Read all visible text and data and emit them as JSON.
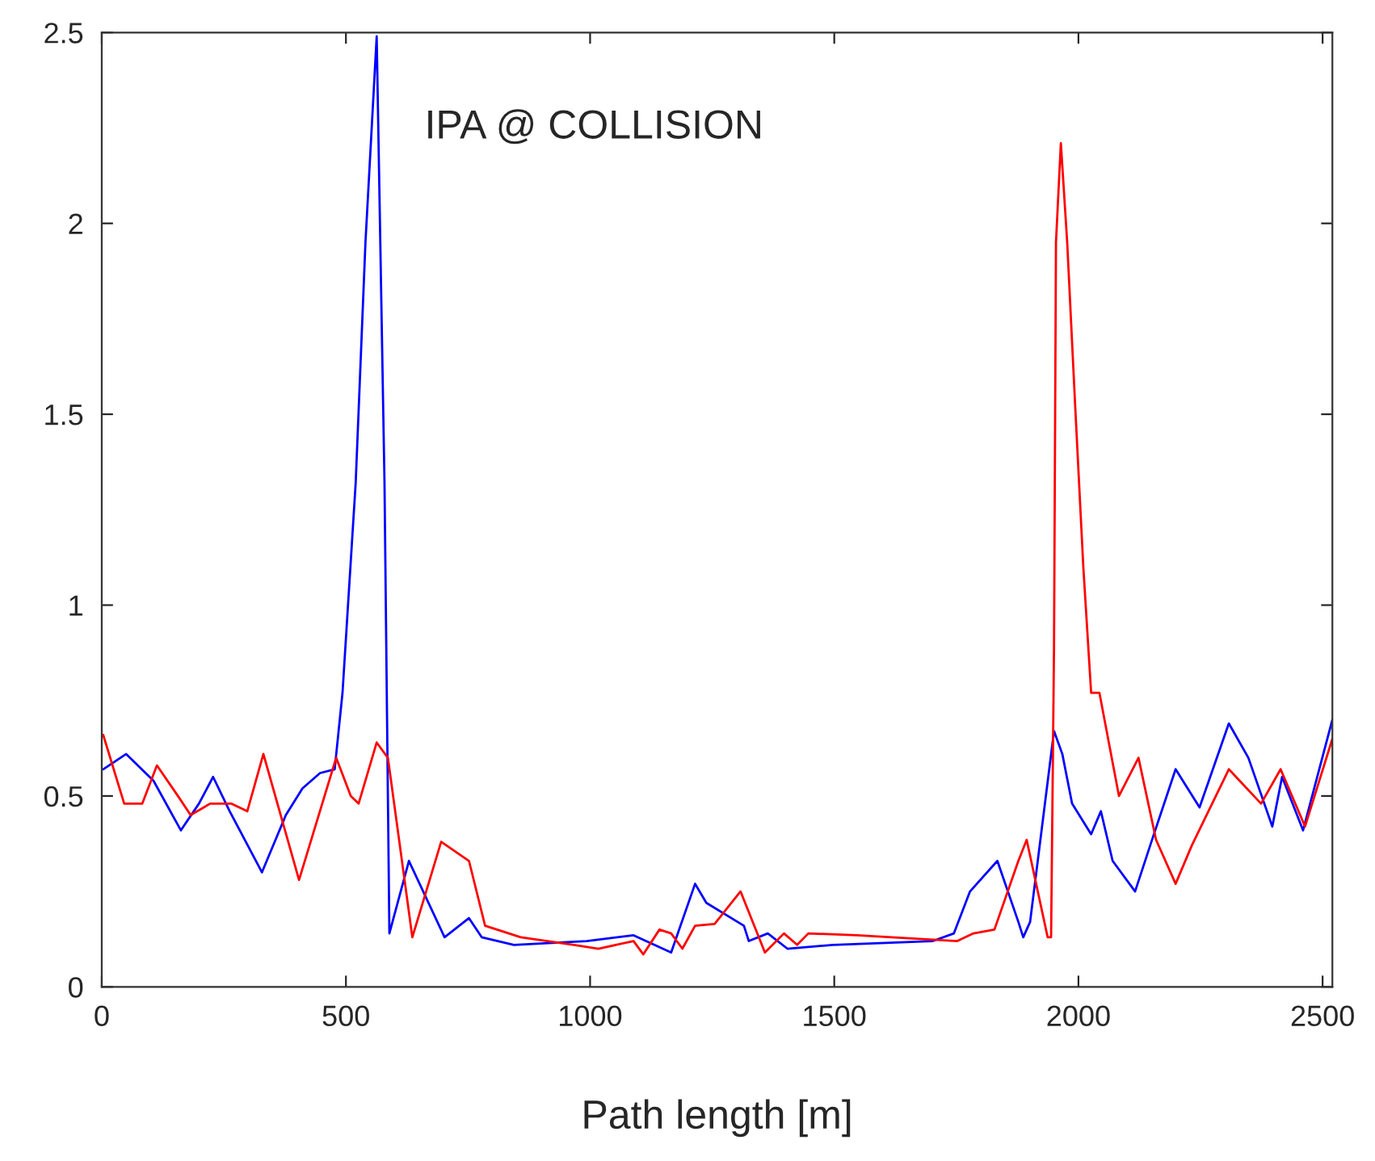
{
  "chart_data": {
    "type": "line",
    "xlabel": "Path length [m]",
    "annotations": [
      "IPA @ COLLISION"
    ],
    "xlim": [
      0,
      2520
    ],
    "ylim": [
      0,
      2.5
    ],
    "xticks": [
      0,
      500,
      1000,
      1500,
      2000,
      2500
    ],
    "yticks": [
      0,
      0.5,
      1,
      1.5,
      2,
      2.5
    ],
    "grid": false,
    "line_style": "solid",
    "series": [
      {
        "color": "#0000ff",
        "x": [
          3,
          50,
          106,
          162,
          199,
          228,
          262,
          328,
          377,
          411,
          447,
          477,
          493,
          520,
          540,
          563,
          579,
          589,
          629,
          702,
          752,
          778,
          844,
          993,
          1089,
          1166,
          1215,
          1238,
          1315,
          1325,
          1364,
          1404,
          1497,
          1702,
          1745,
          1778,
          1834,
          1877,
          1887,
          1901,
          1950,
          1967,
          1987,
          2026,
          2046,
          2070,
          2116,
          2152,
          2199,
          2248,
          2308,
          2348,
          2397,
          2417,
          2460,
          2520
        ],
        "values": [
          0.57,
          0.61,
          0.54,
          0.41,
          0.48,
          0.55,
          0.46,
          0.3,
          0.45,
          0.52,
          0.56,
          0.57,
          0.77,
          1.32,
          1.95,
          2.49,
          1.32,
          0.14,
          0.33,
          0.13,
          0.18,
          0.13,
          0.11,
          0.12,
          0.135,
          0.09,
          0.27,
          0.22,
          0.16,
          0.12,
          0.14,
          0.1,
          0.11,
          0.12,
          0.14,
          0.25,
          0.33,
          0.17,
          0.13,
          0.17,
          0.67,
          0.61,
          0.48,
          0.4,
          0.46,
          0.33,
          0.25,
          0.39,
          0.57,
          0.47,
          0.69,
          0.6,
          0.42,
          0.55,
          0.41,
          0.7
        ]
      },
      {
        "color": "#ff0000",
        "x": [
          3,
          46,
          83,
          113,
          156,
          182,
          222,
          265,
          298,
          331,
          404,
          480,
          510,
          526,
          563,
          586,
          636,
          695,
          752,
          785,
          858,
          967,
          1017,
          1089,
          1109,
          1142,
          1166,
          1189,
          1215,
          1255,
          1308,
          1358,
          1397,
          1424,
          1447,
          1546,
          1752,
          1785,
          1828,
          1877,
          1894,
          1937,
          1944,
          1950,
          1954,
          1964,
          1977,
          1993,
          2010,
          2026,
          2043,
          2083,
          2123,
          2159,
          2199,
          2232,
          2308,
          2374,
          2414,
          2464,
          2520
        ],
        "values": [
          0.66,
          0.48,
          0.48,
          0.58,
          0.5,
          0.45,
          0.48,
          0.48,
          0.46,
          0.61,
          0.28,
          0.6,
          0.5,
          0.48,
          0.64,
          0.6,
          0.13,
          0.38,
          0.33,
          0.16,
          0.13,
          0.11,
          0.1,
          0.12,
          0.085,
          0.15,
          0.14,
          0.1,
          0.16,
          0.165,
          0.25,
          0.09,
          0.14,
          0.11,
          0.14,
          0.135,
          0.12,
          0.14,
          0.15,
          0.33,
          0.385,
          0.13,
          0.13,
          0.89,
          1.95,
          2.21,
          1.95,
          1.53,
          1.1,
          0.77,
          0.77,
          0.5,
          0.6,
          0.385,
          0.27,
          0.37,
          0.57,
          0.48,
          0.57,
          0.42,
          0.65
        ]
      }
    ]
  }
}
